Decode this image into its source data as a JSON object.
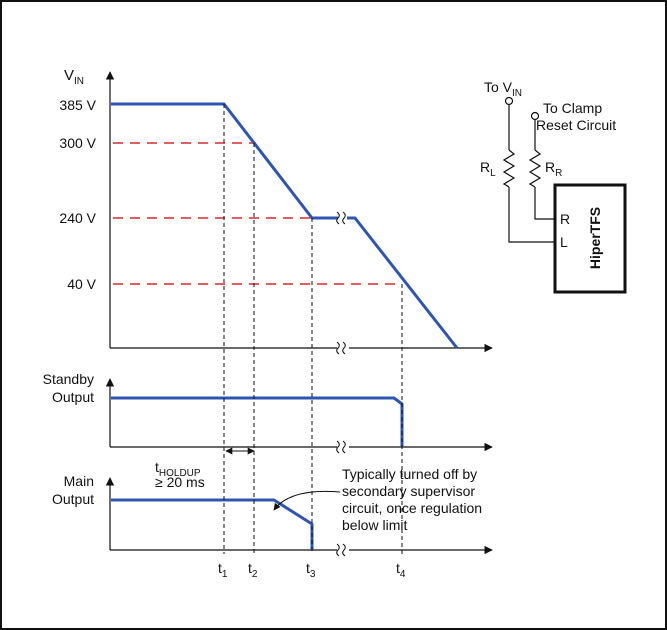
{
  "colors": {
    "trace": "#2f55b3",
    "threshold": "#d9282f",
    "ink": "#111111",
    "background": "#ffffff"
  },
  "vin_plot": {
    "ylabel": "V",
    "ylabel_sub": "IN",
    "ticks": {
      "v385": "385 V",
      "v300": "300 V",
      "v240": "240 V",
      "v40": "40 V"
    }
  },
  "standby_plot": {
    "label_line1": "Standby",
    "label_line2": "Output"
  },
  "main_plot": {
    "label_line1": "Main",
    "label_line2": "Output",
    "holdup_label": "t",
    "holdup_sub": "HOLDUP",
    "holdup_value": "≥ 20 ms",
    "note_lines": [
      "Typically turned off by",
      "secondary supervisor",
      "circuit, once regulation",
      "below limit"
    ]
  },
  "time_markers": [
    {
      "main": "t",
      "sub": "1"
    },
    {
      "main": "t",
      "sub": "2"
    },
    {
      "main": "t",
      "sub": "3"
    },
    {
      "main": "t",
      "sub": "4"
    }
  ],
  "schematic": {
    "vin_label": "To V",
    "vin_sub": "IN",
    "clamp_line1": "To Clamp",
    "clamp_line2": "Reset Circuit",
    "rl_label": "R",
    "rl_sub": "L",
    "rr_label": "R",
    "rr_sub": "R",
    "pin_r": "R",
    "pin_l": "L",
    "ic_name": "HiperTFS"
  }
}
